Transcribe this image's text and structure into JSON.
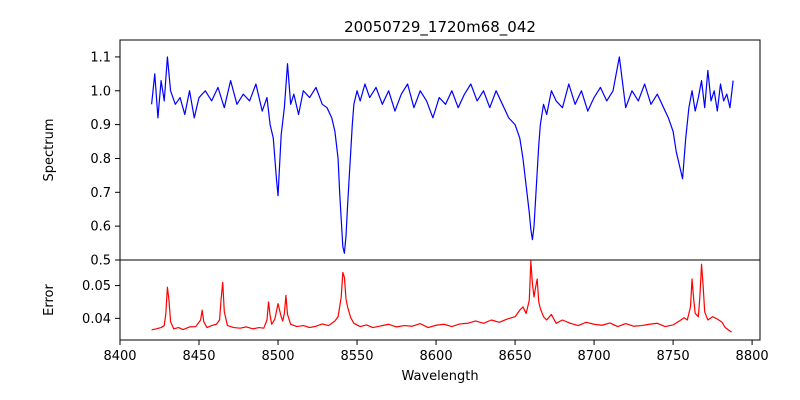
{
  "chart_data": {
    "type": "line",
    "title": "20050729_1720m68_042",
    "xlabel": "Wavelength",
    "xlim": [
      8400,
      8805
    ],
    "xticks": [
      8400,
      8450,
      8500,
      8550,
      8600,
      8650,
      8700,
      8750,
      8800
    ],
    "grid": false,
    "panels": [
      {
        "name": "spectrum",
        "ylabel": "Spectrum",
        "ylim": [
          0.5,
          1.15
        ],
        "yticks": [
          0.5,
          0.6,
          0.7,
          0.8,
          0.9,
          1.0,
          1.1
        ],
        "series": [
          {
            "color": "#0000ff",
            "x": [
              8420,
              8422,
              8424,
              8426,
              8428,
              8430,
              8432,
              8435,
              8438,
              8441,
              8444,
              8447,
              8450,
              8454,
              8458,
              8462,
              8466,
              8470,
              8474,
              8478,
              8482,
              8486,
              8490,
              8493,
              8495,
              8497,
              8498,
              8499,
              8500,
              8501,
              8502,
              8504,
              8506,
              8508,
              8510,
              8513,
              8516,
              8520,
              8524,
              8528,
              8531,
              8534,
              8536,
              8538,
              8539,
              8540,
              8541,
              8542,
              8543,
              8544,
              8545,
              8546,
              8547,
              8548,
              8550,
              8552,
              8555,
              8558,
              8562,
              8566,
              8570,
              8574,
              8578,
              8582,
              8586,
              8590,
              8594,
              8598,
              8602,
              8606,
              8610,
              8614,
              8618,
              8622,
              8626,
              8630,
              8634,
              8638,
              8642,
              8646,
              8650,
              8653,
              8655,
              8657,
              8659,
              8660,
              8661,
              8662,
              8663,
              8664,
              8665,
              8666,
              8668,
              8670,
              8673,
              8676,
              8680,
              8684,
              8688,
              8692,
              8696,
              8700,
              8704,
              8708,
              8712,
              8716,
              8720,
              8724,
              8728,
              8732,
              8736,
              8740,
              8744,
              8747,
              8750,
              8752,
              8754,
              8756,
              8758,
              8760,
              8762,
              8764,
              8766,
              8768,
              8770,
              8772,
              8774,
              8776,
              8778,
              8780,
              8782,
              8784,
              8786,
              8788
            ],
            "y": [
              0.96,
              1.05,
              0.92,
              1.03,
              0.97,
              1.1,
              1.0,
              0.96,
              0.98,
              0.93,
              1.0,
              0.92,
              0.98,
              1.0,
              0.97,
              1.01,
              0.95,
              1.03,
              0.96,
              0.99,
              0.97,
              1.02,
              0.94,
              0.98,
              0.9,
              0.86,
              0.8,
              0.74,
              0.69,
              0.78,
              0.87,
              0.95,
              1.08,
              0.96,
              0.99,
              0.93,
              1.0,
              0.98,
              1.01,
              0.96,
              0.95,
              0.92,
              0.88,
              0.8,
              0.7,
              0.62,
              0.54,
              0.52,
              0.57,
              0.66,
              0.74,
              0.82,
              0.9,
              0.96,
              1.0,
              0.97,
              1.02,
              0.98,
              1.01,
              0.96,
              1.0,
              0.94,
              0.99,
              1.02,
              0.95,
              1.0,
              0.97,
              0.92,
              0.98,
              0.96,
              1.0,
              0.95,
              0.99,
              1.02,
              0.97,
              1.0,
              0.95,
              1.0,
              0.96,
              0.92,
              0.9,
              0.86,
              0.8,
              0.72,
              0.64,
              0.59,
              0.56,
              0.6,
              0.68,
              0.76,
              0.84,
              0.9,
              0.96,
              0.93,
              1.0,
              0.97,
              0.95,
              1.02,
              0.96,
              1.0,
              0.94,
              0.98,
              1.01,
              0.97,
              1.0,
              1.1,
              0.95,
              1.0,
              0.97,
              1.02,
              0.96,
              0.99,
              0.95,
              0.92,
              0.88,
              0.82,
              0.78,
              0.74,
              0.86,
              0.95,
              1.0,
              0.94,
              0.98,
              1.03,
              0.95,
              1.06,
              0.97,
              1.0,
              0.94,
              1.02,
              0.97,
              0.99,
              0.95,
              1.03
            ]
          }
        ]
      },
      {
        "name": "error",
        "ylabel": "Error",
        "ylim": [
          0.0334,
          0.0578
        ],
        "yticks": [
          0.04,
          0.05
        ],
        "series": [
          {
            "color": "#ff0000",
            "x": [
              8420,
              8423,
              8426,
              8428,
              8429,
              8430,
              8431,
              8432,
              8434,
              8437,
              8440,
              8444,
              8448,
              8451,
              8452,
              8453,
              8455,
              8458,
              8461,
              8463,
              8464,
              8465,
              8466,
              8468,
              8472,
              8476,
              8480,
              8484,
              8488,
              8491,
              8493,
              8494,
              8495,
              8496,
              8498,
              8500,
              8502,
              8503,
              8504,
              8505,
              8506,
              8508,
              8512,
              8516,
              8520,
              8524,
              8528,
              8532,
              8536,
              8538,
              8540,
              8541,
              8542,
              8543,
              8544,
              8546,
              8548,
              8552,
              8556,
              8560,
              8565,
              8570,
              8575,
              8580,
              8585,
              8590,
              8595,
              8600,
              8605,
              8610,
              8615,
              8620,
              8625,
              8630,
              8635,
              8640,
              8645,
              8650,
              8653,
              8655,
              8657,
              8659,
              8660,
              8661,
              8662,
              8663,
              8664,
              8665,
              8666,
              8668,
              8670,
              8673,
              8676,
              8680,
              8685,
              8690,
              8695,
              8700,
              8705,
              8710,
              8715,
              8720,
              8725,
              8730,
              8735,
              8740,
              8745,
              8750,
              8754,
              8757,
              8759,
              8761,
              8762,
              8763,
              8764,
              8766,
              8767,
              8768,
              8769,
              8770,
              8772,
              8775,
              8778,
              8781,
              8783,
              8785,
              8787
            ],
            "y": [
              0.0365,
              0.0368,
              0.0372,
              0.0378,
              0.0415,
              0.0495,
              0.0455,
              0.039,
              0.0368,
              0.0372,
              0.0366,
              0.0374,
              0.0375,
              0.0395,
              0.0425,
              0.039,
              0.0372,
              0.0378,
              0.0382,
              0.0395,
              0.046,
              0.051,
              0.042,
              0.0378,
              0.0372,
              0.037,
              0.0374,
              0.0368,
              0.0372,
              0.037,
              0.0395,
              0.045,
              0.0408,
              0.0382,
              0.0398,
              0.0445,
              0.0405,
              0.0392,
              0.0415,
              0.047,
              0.0412,
              0.0382,
              0.0375,
              0.0378,
              0.0372,
              0.0376,
              0.0383,
              0.0378,
              0.0392,
              0.0405,
              0.0465,
              0.054,
              0.0525,
              0.046,
              0.0435,
              0.0402,
              0.0385,
              0.0375,
              0.038,
              0.0372,
              0.0377,
              0.0382,
              0.0374,
              0.0378,
              0.0376,
              0.0384,
              0.0372,
              0.0379,
              0.0382,
              0.0375,
              0.0383,
              0.0385,
              0.0392,
              0.0385,
              0.0395,
              0.0388,
              0.0398,
              0.0405,
              0.0425,
              0.0435,
              0.0415,
              0.0455,
              0.0575,
              0.0505,
              0.0465,
              0.0495,
              0.052,
              0.045,
              0.043,
              0.0405,
              0.0395,
              0.0412,
              0.0385,
              0.0395,
              0.0385,
              0.0378,
              0.0388,
              0.0382,
              0.0379,
              0.0386,
              0.0375,
              0.0384,
              0.0376,
              0.0378,
              0.0382,
              0.0385,
              0.0375,
              0.038,
              0.0392,
              0.0402,
              0.0395,
              0.0435,
              0.052,
              0.046,
              0.0415,
              0.0405,
              0.047,
              0.0565,
              0.05,
              0.042,
              0.0395,
              0.0405,
              0.0398,
              0.0388,
              0.0372,
              0.0365,
              0.0358
            ]
          }
        ]
      }
    ]
  }
}
